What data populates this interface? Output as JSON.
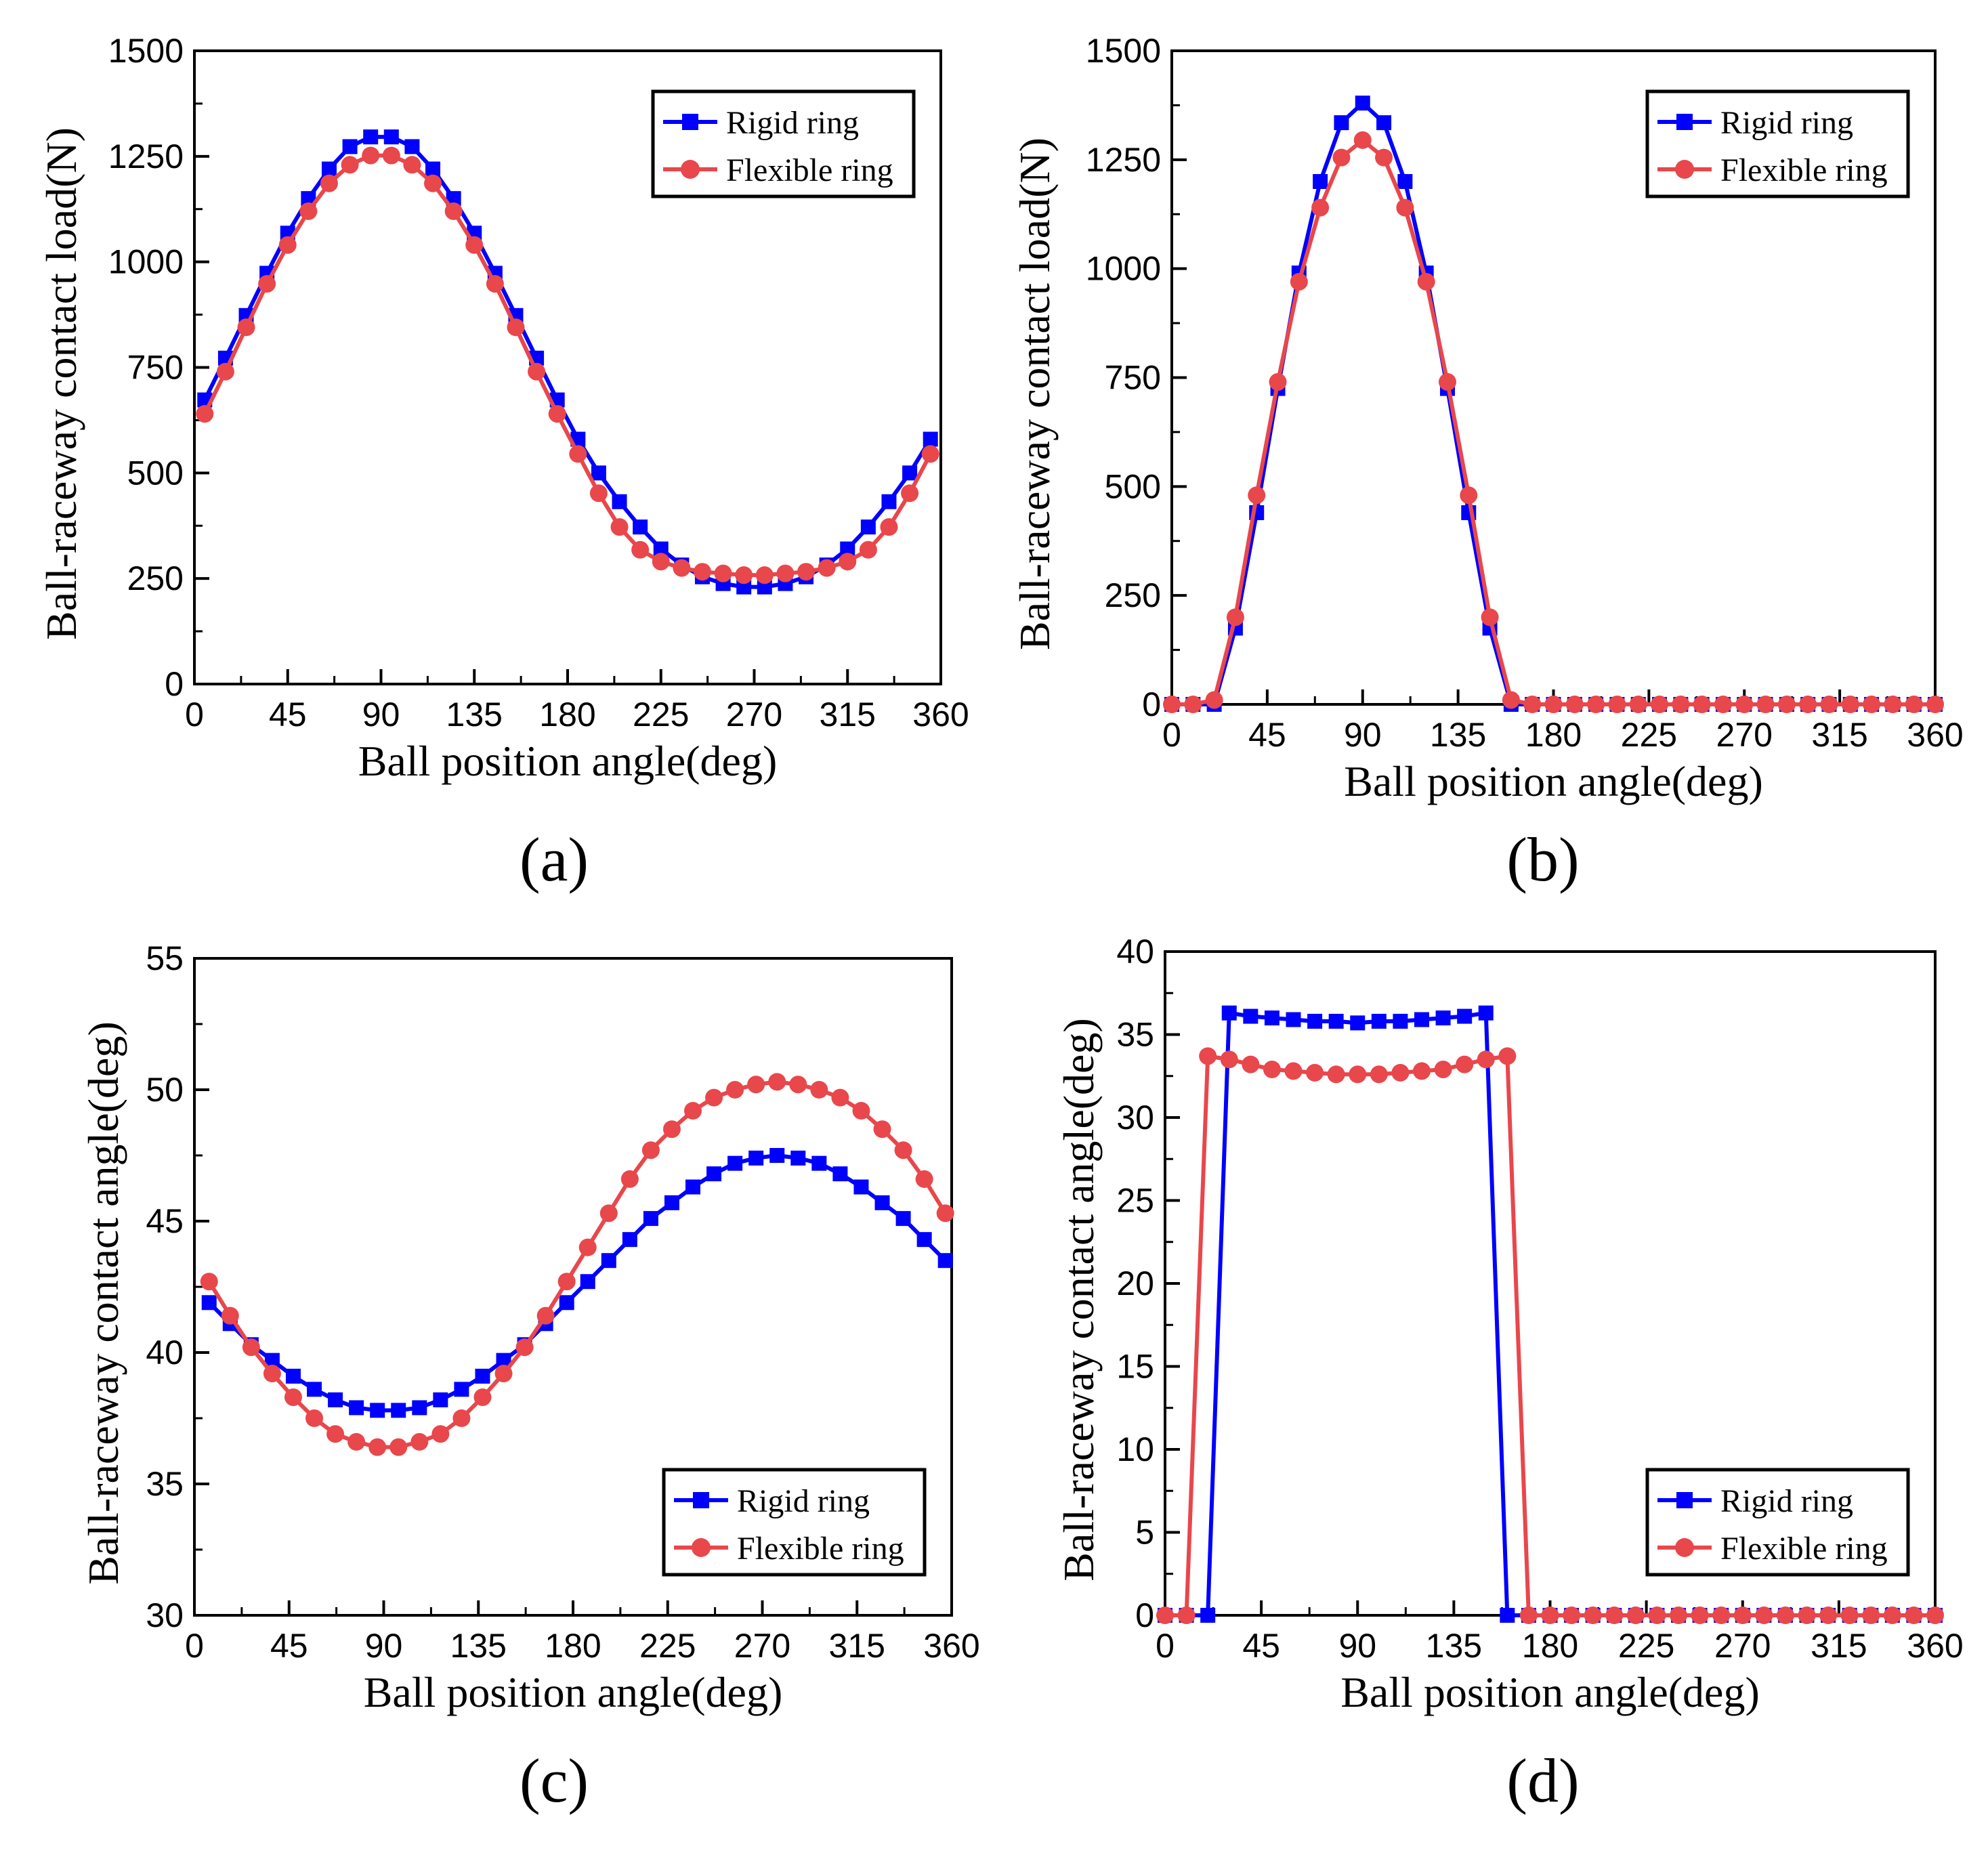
{
  "chart_data": [
    {
      "panel_label": "(a)",
      "type": "line",
      "xlabel": "Ball position angle(deg)",
      "ylabel": "Ball-raceway contact load(N)",
      "xlim": [
        0,
        360
      ],
      "ylim": [
        0,
        1500
      ],
      "xticks": [
        0,
        45,
        90,
        135,
        180,
        225,
        270,
        315,
        360
      ],
      "yticks": [
        0,
        250,
        500,
        750,
        1000,
        1250,
        1500
      ],
      "legend_position": "top-right",
      "x": [
        5,
        15,
        25,
        35,
        45,
        55,
        65,
        75,
        85,
        95,
        105,
        115,
        125,
        135,
        145,
        155,
        165,
        175,
        185,
        195,
        205,
        215,
        225,
        235,
        245,
        255,
        265,
        275,
        285,
        295,
        305,
        315,
        325,
        335,
        345,
        355
      ],
      "series": [
        {
          "name": "Rigid ring",
          "marker": "square",
          "color": "#0000ff",
          "values": [
            673,
            772,
            873,
            973,
            1068,
            1150,
            1220,
            1273,
            1296,
            1296,
            1273,
            1220,
            1150,
            1068,
            973,
            873,
            772,
            673,
            580,
            500,
            432,
            372,
            320,
            282,
            254,
            238,
            230,
            230,
            238,
            254,
            282,
            320,
            372,
            432,
            500,
            580
          ]
        },
        {
          "name": "Flexible ring",
          "marker": "circle",
          "color": "#e8474b",
          "values": [
            640,
            740,
            845,
            948,
            1040,
            1120,
            1186,
            1230,
            1252,
            1252,
            1230,
            1186,
            1120,
            1040,
            948,
            845,
            740,
            640,
            545,
            452,
            372,
            318,
            290,
            275,
            266,
            262,
            258,
            258,
            262,
            266,
            275,
            290,
            318,
            372,
            452,
            545
          ]
        }
      ]
    },
    {
      "panel_label": "(b)",
      "type": "line",
      "xlabel": "Ball position angle(deg)",
      "ylabel": "Ball-raceway contact load(N)",
      "xlim": [
        0,
        360
      ],
      "ylim": [
        0,
        1500
      ],
      "xticks": [
        0,
        45,
        90,
        135,
        180,
        225,
        270,
        315,
        360
      ],
      "yticks": [
        0,
        250,
        500,
        750,
        1000,
        1250,
        1500
      ],
      "legend_position": "top-right",
      "x": [
        0,
        10,
        20,
        30,
        40,
        50,
        60,
        70,
        80,
        90,
        100,
        110,
        120,
        130,
        140,
        150,
        160,
        170,
        180,
        190,
        200,
        210,
        220,
        230,
        240,
        250,
        260,
        270,
        280,
        290,
        300,
        310,
        320,
        330,
        340,
        350,
        360
      ],
      "series": [
        {
          "name": "Rigid ring",
          "marker": "square",
          "color": "#0000ff",
          "values": [
            0,
            0,
            0,
            175,
            440,
            725,
            990,
            1200,
            1335,
            1380,
            1335,
            1200,
            990,
            725,
            440,
            175,
            0,
            0,
            0,
            0,
            0,
            0,
            0,
            0,
            0,
            0,
            0,
            0,
            0,
            0,
            0,
            0,
            0,
            0,
            0,
            0,
            0
          ]
        },
        {
          "name": "Flexible ring",
          "marker": "circle",
          "color": "#e8474b",
          "values": [
            0,
            0,
            10,
            200,
            480,
            740,
            970,
            1140,
            1255,
            1295,
            1255,
            1140,
            970,
            740,
            480,
            200,
            10,
            0,
            0,
            0,
            0,
            0,
            0,
            0,
            0,
            0,
            0,
            0,
            0,
            0,
            0,
            0,
            0,
            0,
            0,
            0,
            0
          ]
        }
      ]
    },
    {
      "panel_label": "(c)",
      "type": "line",
      "xlabel": "Ball position angle(deg)",
      "ylabel": "Ball-raceway contact angle(deg)",
      "xlim": [
        0,
        360
      ],
      "ylim": [
        30,
        55
      ],
      "xticks": [
        0,
        45,
        90,
        135,
        180,
        225,
        270,
        315,
        360
      ],
      "yticks": [
        30,
        35,
        40,
        45,
        50,
        55
      ],
      "legend_position": "bottom-right",
      "x": [
        7,
        17,
        27,
        37,
        47,
        57,
        67,
        77,
        87,
        97,
        107,
        117,
        127,
        137,
        147,
        157,
        167,
        177,
        187,
        197,
        207,
        217,
        227,
        237,
        247,
        257,
        267,
        277,
        287,
        297,
        307,
        317,
        327,
        337,
        347,
        357
      ],
      "series": [
        {
          "name": "Rigid ring",
          "marker": "square",
          "color": "#0000ff",
          "values": [
            41.9,
            41.1,
            40.3,
            39.7,
            39.1,
            38.6,
            38.2,
            37.9,
            37.8,
            37.8,
            37.9,
            38.2,
            38.6,
            39.1,
            39.7,
            40.3,
            41.1,
            41.9,
            42.7,
            43.5,
            44.3,
            45.1,
            45.7,
            46.3,
            46.8,
            47.2,
            47.4,
            47.5,
            47.4,
            47.2,
            46.8,
            46.3,
            45.7,
            45.1,
            44.3,
            43.5
          ]
        },
        {
          "name": "Flexible ring",
          "marker": "circle",
          "color": "#e8474b",
          "values": [
            42.7,
            41.4,
            40.2,
            39.2,
            38.3,
            37.5,
            36.9,
            36.6,
            36.4,
            36.4,
            36.6,
            36.9,
            37.5,
            38.3,
            39.2,
            40.2,
            41.4,
            42.7,
            44.0,
            45.3,
            46.6,
            47.7,
            48.5,
            49.2,
            49.7,
            50.0,
            50.2,
            50.3,
            50.2,
            50.0,
            49.7,
            49.2,
            48.5,
            47.7,
            46.6,
            45.3
          ]
        }
      ]
    },
    {
      "panel_label": "(d)",
      "type": "line",
      "xlabel": "Ball position angle(deg)",
      "ylabel": "Ball-raceway contact angle(deg)",
      "xlim": [
        0,
        360
      ],
      "ylim": [
        0,
        40
      ],
      "xticks": [
        0,
        45,
        90,
        135,
        180,
        225,
        270,
        315,
        360
      ],
      "yticks": [
        0,
        5,
        10,
        15,
        20,
        25,
        30,
        35,
        40
      ],
      "legend_position": "bottom-right",
      "x": [
        0,
        10,
        20,
        30,
        40,
        50,
        60,
        70,
        80,
        90,
        100,
        110,
        120,
        130,
        140,
        150,
        160,
        170,
        180,
        190,
        200,
        210,
        220,
        230,
        240,
        250,
        260,
        270,
        280,
        290,
        300,
        310,
        320,
        330,
        340,
        350,
        360
      ],
      "series": [
        {
          "name": "Rigid ring",
          "marker": "square",
          "color": "#0000ff",
          "values": [
            0,
            0,
            0,
            36.3,
            36.1,
            36.0,
            35.9,
            35.8,
            35.8,
            35.7,
            35.8,
            35.8,
            35.9,
            36.0,
            36.1,
            36.3,
            0,
            0,
            0,
            0,
            0,
            0,
            0,
            0,
            0,
            0,
            0,
            0,
            0,
            0,
            0,
            0,
            0,
            0,
            0,
            0,
            0
          ]
        },
        {
          "name": "Flexible ring",
          "marker": "circle",
          "color": "#e8474b",
          "values": [
            0,
            0,
            33.7,
            33.5,
            33.2,
            32.9,
            32.8,
            32.7,
            32.6,
            32.6,
            32.6,
            32.7,
            32.8,
            32.9,
            33.2,
            33.5,
            33.7,
            0,
            0,
            0,
            0,
            0,
            0,
            0,
            0,
            0,
            0,
            0,
            0,
            0,
            0,
            0,
            0,
            0,
            0,
            0,
            0
          ]
        }
      ]
    }
  ]
}
